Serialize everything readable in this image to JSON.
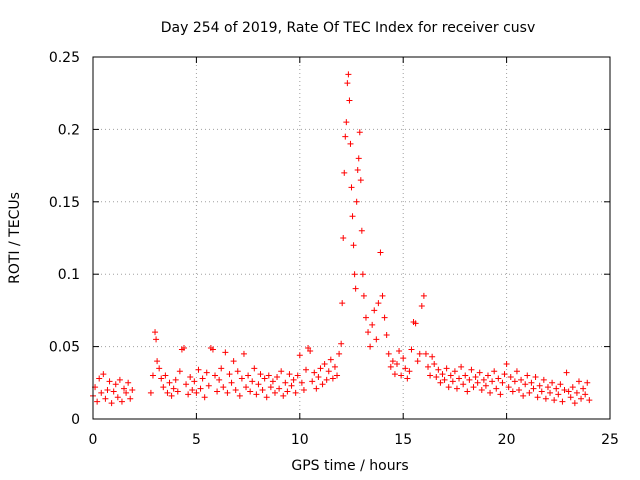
{
  "chart_data": {
    "type": "scatter",
    "title": "Day 254 of 2019, Rate Of TEC Index for receiver cusv",
    "xlabel": "GPS time / hours",
    "ylabel": "ROTI / TECUs",
    "xlim": [
      0,
      25
    ],
    "ylim": [
      0,
      0.25
    ],
    "xticks": [
      0,
      5,
      10,
      15,
      20,
      25
    ],
    "xtick_labels": [
      "0",
      "5",
      "10",
      "15",
      "20",
      "25"
    ],
    "yticks": [
      0,
      0.05,
      0.1,
      0.15,
      0.2,
      0.25
    ],
    "ytick_labels": [
      "0",
      "0.05",
      "0.1",
      "0.15",
      "0.2",
      "0.25"
    ],
    "grid": true,
    "marker": "+",
    "color": "#ff0000",
    "series": [
      {
        "name": "ROTI",
        "points": [
          [
            0.0,
            0.016
          ],
          [
            0.1,
            0.022
          ],
          [
            0.2,
            0.012
          ],
          [
            0.3,
            0.028
          ],
          [
            0.4,
            0.018
          ],
          [
            0.5,
            0.031
          ],
          [
            0.6,
            0.014
          ],
          [
            0.7,
            0.02
          ],
          [
            0.8,
            0.026
          ],
          [
            0.9,
            0.011
          ],
          [
            1.0,
            0.019
          ],
          [
            1.1,
            0.024
          ],
          [
            1.2,
            0.015
          ],
          [
            1.3,
            0.027
          ],
          [
            1.4,
            0.012
          ],
          [
            1.5,
            0.021
          ],
          [
            1.6,
            0.018
          ],
          [
            1.7,
            0.025
          ],
          [
            1.8,
            0.014
          ],
          [
            1.9,
            0.02
          ],
          [
            2.8,
            0.018
          ],
          [
            2.9,
            0.03
          ],
          [
            3.0,
            0.06
          ],
          [
            3.05,
            0.055
          ],
          [
            3.1,
            0.04
          ],
          [
            3.2,
            0.035
          ],
          [
            3.3,
            0.028
          ],
          [
            3.4,
            0.022
          ],
          [
            3.5,
            0.03
          ],
          [
            3.6,
            0.018
          ],
          [
            3.7,
            0.025
          ],
          [
            3.8,
            0.016
          ],
          [
            3.9,
            0.021
          ],
          [
            4.0,
            0.027
          ],
          [
            4.1,
            0.019
          ],
          [
            4.2,
            0.033
          ],
          [
            4.3,
            0.048
          ],
          [
            4.4,
            0.049
          ],
          [
            4.5,
            0.024
          ],
          [
            4.6,
            0.017
          ],
          [
            4.7,
            0.029
          ],
          [
            4.8,
            0.02
          ],
          [
            4.9,
            0.026
          ],
          [
            5.0,
            0.018
          ],
          [
            5.1,
            0.034
          ],
          [
            5.2,
            0.021
          ],
          [
            5.3,
            0.028
          ],
          [
            5.4,
            0.015
          ],
          [
            5.5,
            0.032
          ],
          [
            5.6,
            0.023
          ],
          [
            5.7,
            0.049
          ],
          [
            5.8,
            0.048
          ],
          [
            5.9,
            0.03
          ],
          [
            6.0,
            0.019
          ],
          [
            6.1,
            0.027
          ],
          [
            6.2,
            0.035
          ],
          [
            6.3,
            0.022
          ],
          [
            6.4,
            0.046
          ],
          [
            6.5,
            0.018
          ],
          [
            6.6,
            0.031
          ],
          [
            6.7,
            0.025
          ],
          [
            6.8,
            0.04
          ],
          [
            6.9,
            0.02
          ],
          [
            7.0,
            0.033
          ],
          [
            7.1,
            0.016
          ],
          [
            7.2,
            0.028
          ],
          [
            7.3,
            0.045
          ],
          [
            7.4,
            0.022
          ],
          [
            7.5,
            0.03
          ],
          [
            7.6,
            0.019
          ],
          [
            7.7,
            0.026
          ],
          [
            7.8,
            0.035
          ],
          [
            7.9,
            0.017
          ],
          [
            8.0,
            0.024
          ],
          [
            8.1,
            0.031
          ],
          [
            8.2,
            0.02
          ],
          [
            8.3,
            0.028
          ],
          [
            8.4,
            0.015
          ],
          [
            8.5,
            0.03
          ],
          [
            8.6,
            0.022
          ],
          [
            8.7,
            0.026
          ],
          [
            8.8,
            0.018
          ],
          [
            8.9,
            0.029
          ],
          [
            9.0,
            0.021
          ],
          [
            9.1,
            0.033
          ],
          [
            9.2,
            0.016
          ],
          [
            9.3,
            0.025
          ],
          [
            9.4,
            0.019
          ],
          [
            9.5,
            0.031
          ],
          [
            9.6,
            0.023
          ],
          [
            9.7,
            0.027
          ],
          [
            9.8,
            0.018
          ],
          [
            9.9,
            0.03
          ],
          [
            10.0,
            0.044
          ],
          [
            10.1,
            0.025
          ],
          [
            10.2,
            0.02
          ],
          [
            10.3,
            0.034
          ],
          [
            10.4,
            0.049
          ],
          [
            10.5,
            0.047
          ],
          [
            10.6,
            0.026
          ],
          [
            10.7,
            0.032
          ],
          [
            10.8,
            0.021
          ],
          [
            10.9,
            0.029
          ],
          [
            11.0,
            0.035
          ],
          [
            11.1,
            0.024
          ],
          [
            11.2,
            0.038
          ],
          [
            11.3,
            0.027
          ],
          [
            11.4,
            0.033
          ],
          [
            11.5,
            0.041
          ],
          [
            11.6,
            0.028
          ],
          [
            11.7,
            0.036
          ],
          [
            11.8,
            0.03
          ],
          [
            11.9,
            0.045
          ],
          [
            12.0,
            0.052
          ],
          [
            12.05,
            0.08
          ],
          [
            12.1,
            0.125
          ],
          [
            12.15,
            0.17
          ],
          [
            12.2,
            0.195
          ],
          [
            12.25,
            0.205
          ],
          [
            12.3,
            0.232
          ],
          [
            12.35,
            0.238
          ],
          [
            12.4,
            0.22
          ],
          [
            12.45,
            0.19
          ],
          [
            12.5,
            0.16
          ],
          [
            12.55,
            0.14
          ],
          [
            12.6,
            0.12
          ],
          [
            12.65,
            0.1
          ],
          [
            12.7,
            0.09
          ],
          [
            12.75,
            0.15
          ],
          [
            12.8,
            0.172
          ],
          [
            12.85,
            0.18
          ],
          [
            12.9,
            0.198
          ],
          [
            12.95,
            0.165
          ],
          [
            13.0,
            0.13
          ],
          [
            13.05,
            0.1
          ],
          [
            13.1,
            0.085
          ],
          [
            13.2,
            0.07
          ],
          [
            13.3,
            0.06
          ],
          [
            13.4,
            0.05
          ],
          [
            13.5,
            0.065
          ],
          [
            13.6,
            0.075
          ],
          [
            13.7,
            0.055
          ],
          [
            13.8,
            0.08
          ],
          [
            13.9,
            0.115
          ],
          [
            14.0,
            0.085
          ],
          [
            14.1,
            0.07
          ],
          [
            14.2,
            0.058
          ],
          [
            14.3,
            0.045
          ],
          [
            14.4,
            0.036
          ],
          [
            14.5,
            0.04
          ],
          [
            14.6,
            0.031
          ],
          [
            14.7,
            0.038
          ],
          [
            14.8,
            0.047
          ],
          [
            14.9,
            0.03
          ],
          [
            15.0,
            0.042
          ],
          [
            15.1,
            0.035
          ],
          [
            15.2,
            0.028
          ],
          [
            15.3,
            0.033
          ],
          [
            15.4,
            0.048
          ],
          [
            15.5,
            0.067
          ],
          [
            15.6,
            0.066
          ],
          [
            15.7,
            0.04
          ],
          [
            15.8,
            0.045
          ],
          [
            15.9,
            0.078
          ],
          [
            16.0,
            0.085
          ],
          [
            16.1,
            0.045
          ],
          [
            16.2,
            0.036
          ],
          [
            16.3,
            0.03
          ],
          [
            16.4,
            0.043
          ],
          [
            16.5,
            0.038
          ],
          [
            16.6,
            0.029
          ],
          [
            16.7,
            0.034
          ],
          [
            16.8,
            0.025
          ],
          [
            16.9,
            0.031
          ],
          [
            17.0,
            0.027
          ],
          [
            17.1,
            0.035
          ],
          [
            17.2,
            0.022
          ],
          [
            17.3,
            0.03
          ],
          [
            17.4,
            0.026
          ],
          [
            17.5,
            0.033
          ],
          [
            17.6,
            0.021
          ],
          [
            17.7,
            0.028
          ],
          [
            17.8,
            0.036
          ],
          [
            17.9,
            0.024
          ],
          [
            18.0,
            0.03
          ],
          [
            18.1,
            0.019
          ],
          [
            18.2,
            0.027
          ],
          [
            18.3,
            0.034
          ],
          [
            18.4,
            0.022
          ],
          [
            18.5,
            0.029
          ],
          [
            18.6,
            0.025
          ],
          [
            18.7,
            0.032
          ],
          [
            18.8,
            0.02
          ],
          [
            18.9,
            0.027
          ],
          [
            19.0,
            0.023
          ],
          [
            19.1,
            0.03
          ],
          [
            19.2,
            0.018
          ],
          [
            19.3,
            0.026
          ],
          [
            19.4,
            0.033
          ],
          [
            19.5,
            0.021
          ],
          [
            19.6,
            0.028
          ],
          [
            19.7,
            0.017
          ],
          [
            19.8,
            0.025
          ],
          [
            19.9,
            0.031
          ],
          [
            20.0,
            0.038
          ],
          [
            20.1,
            0.022
          ],
          [
            20.2,
            0.029
          ],
          [
            20.3,
            0.019
          ],
          [
            20.4,
            0.026
          ],
          [
            20.5,
            0.033
          ],
          [
            20.6,
            0.02
          ],
          [
            20.7,
            0.027
          ],
          [
            20.8,
            0.016
          ],
          [
            20.9,
            0.024
          ],
          [
            21.0,
            0.03
          ],
          [
            21.1,
            0.018
          ],
          [
            21.2,
            0.025
          ],
          [
            21.3,
            0.021
          ],
          [
            21.4,
            0.029
          ],
          [
            21.5,
            0.015
          ],
          [
            21.6,
            0.023
          ],
          [
            21.7,
            0.019
          ],
          [
            21.8,
            0.027
          ],
          [
            21.9,
            0.014
          ],
          [
            22.0,
            0.022
          ],
          [
            22.1,
            0.018
          ],
          [
            22.2,
            0.025
          ],
          [
            22.3,
            0.013
          ],
          [
            22.4,
            0.021
          ],
          [
            22.5,
            0.017
          ],
          [
            22.6,
            0.024
          ],
          [
            22.7,
            0.012
          ],
          [
            22.8,
            0.02
          ],
          [
            22.9,
            0.032
          ],
          [
            23.0,
            0.019
          ],
          [
            23.1,
            0.015
          ],
          [
            23.2,
            0.022
          ],
          [
            23.3,
            0.011
          ],
          [
            23.4,
            0.018
          ],
          [
            23.5,
            0.026
          ],
          [
            23.6,
            0.014
          ],
          [
            23.7,
            0.021
          ],
          [
            23.8,
            0.017
          ],
          [
            23.9,
            0.025
          ],
          [
            24.0,
            0.013
          ]
        ]
      }
    ]
  }
}
